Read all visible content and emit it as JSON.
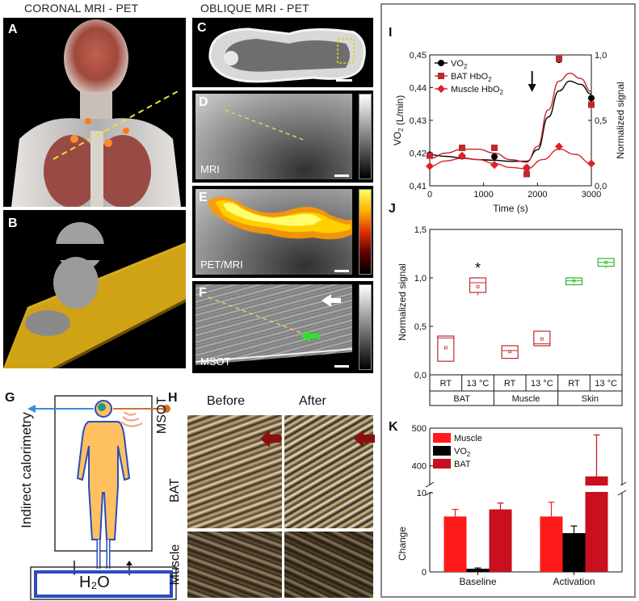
{
  "headers": {
    "coronal": "CORONAL MRI - PET",
    "oblique": "OBLIQUE MRI - PET"
  },
  "panels": {
    "A": "A",
    "B": "B",
    "C": "C",
    "D": "D",
    "E": "E",
    "F": "F",
    "G": "G",
    "H": "H",
    "I": "I",
    "J": "J",
    "K": "K"
  },
  "tags": {
    "mri": "MRI",
    "petmri": "PET/MRI",
    "msot": "MSOT"
  },
  "diagram_g": {
    "side_label": "Indirect calorimetry",
    "h2o": "H₂O"
  },
  "panel_h": {
    "before": "Before",
    "after": "After",
    "msot": "MSOT",
    "bat": "BAT",
    "muscle": "Muscle"
  },
  "chart_data": [
    {
      "id": "I",
      "type": "line",
      "xlabel": "Time (s)",
      "ylabel": "VO₂ (L/min)",
      "y2label": "Normalized signal",
      "xlim": [
        0,
        3000
      ],
      "ylim": [
        0.41,
        0.45
      ],
      "y2lim": [
        0.0,
        1.0
      ],
      "xticks": [
        "0",
        "1000",
        "2000",
        "3000"
      ],
      "yticks": [
        "0,41",
        "0,42",
        "0,43",
        "0,44",
        "0,45"
      ],
      "y2ticks": [
        "0,0",
        "0,5",
        "1,0"
      ],
      "legend_placement": "top-left",
      "colors": {
        "vo2": "#000000",
        "bat": "#c0282d",
        "muscle": "#e0202a"
      },
      "series": [
        {
          "name": "VO₂",
          "axis": "left",
          "marker": "circle",
          "x": [
            0,
            600,
            1200,
            1800,
            2400,
            3000
          ],
          "y": [
            0.4195,
            0.419,
            0.4189,
            0.4155,
            0.4485,
            0.4368
          ],
          "fit_x": [
            0,
            300,
            600,
            900,
            1200,
            1500,
            1800,
            2000,
            2200,
            2400,
            2600,
            2800,
            3000
          ],
          "fit_y": [
            0.4195,
            0.419,
            0.4185,
            0.418,
            0.4178,
            0.4175,
            0.4175,
            0.421,
            0.431,
            0.439,
            0.442,
            0.441,
            0.438
          ]
        },
        {
          "name": "BAT HbO₂",
          "axis": "right",
          "marker": "square",
          "x": [
            0,
            600,
            1200,
            1800,
            2400,
            3000
          ],
          "y": [
            0.23,
            0.29,
            0.29,
            0.09,
            0.97,
            0.62
          ],
          "fit_x": [
            0,
            300,
            600,
            900,
            1200,
            1500,
            1800,
            2000,
            2200,
            2400,
            2600,
            2800,
            3000
          ],
          "fit_y": [
            0.21,
            0.25,
            0.28,
            0.28,
            0.25,
            0.2,
            0.18,
            0.3,
            0.58,
            0.8,
            0.86,
            0.82,
            0.72
          ]
        },
        {
          "name": "Muscle HbO₂",
          "axis": "right",
          "marker": "diamond",
          "x": [
            0,
            600,
            1200,
            1800,
            2400,
            3000
          ],
          "y": [
            0.15,
            0.23,
            0.16,
            0.14,
            0.3,
            0.17
          ],
          "fit_x": [
            0,
            300,
            600,
            900,
            1200,
            1500,
            1800,
            2100,
            2400,
            2700,
            3000
          ],
          "fit_y": [
            0.15,
            0.19,
            0.21,
            0.2,
            0.17,
            0.14,
            0.13,
            0.2,
            0.28,
            0.24,
            0.17
          ]
        }
      ],
      "annotations": [
        {
          "type": "arrow-down",
          "x": 1900
        }
      ]
    },
    {
      "id": "J",
      "type": "box",
      "ylabel": "Normalized signal",
      "ylim": [
        0.0,
        1.5
      ],
      "yticks": [
        "0,0",
        "0,5",
        "1,0",
        "1,5"
      ],
      "categories": [
        "RT",
        "13 °C",
        "RT",
        "13 °C",
        "RT",
        "13 °C"
      ],
      "groups": [
        "BAT",
        "Muscle",
        "Skin"
      ],
      "colors": {
        "BAT": "#c0282d",
        "Muscle": "#c0282d",
        "Skin": "#2db52d"
      },
      "boxes": [
        {
          "group": "BAT",
          "condition": "RT",
          "min": 0.14,
          "q1": 0.14,
          "median": 0.38,
          "q3": 0.4,
          "max": 0.4,
          "mean": 0.28
        },
        {
          "group": "BAT",
          "condition": "13 °C",
          "min": 0.82,
          "q1": 0.85,
          "median": 0.95,
          "q3": 1.0,
          "max": 1.0,
          "mean": 0.91
        },
        {
          "group": "Muscle",
          "condition": "RT",
          "min": 0.17,
          "q1": 0.17,
          "median": 0.25,
          "q3": 0.3,
          "max": 0.3,
          "mean": 0.24
        },
        {
          "group": "Muscle",
          "condition": "13 °C",
          "min": 0.3,
          "q1": 0.3,
          "median": 0.32,
          "q3": 0.45,
          "max": 0.45,
          "mean": 0.37
        },
        {
          "group": "Skin",
          "condition": "RT",
          "min": 0.92,
          "q1": 0.93,
          "median": 0.97,
          "q3": 1.0,
          "max": 1.0,
          "mean": 0.97
        },
        {
          "group": "Skin",
          "condition": "13 °C",
          "min": 1.1,
          "q1": 1.12,
          "median": 1.16,
          "q3": 1.2,
          "max": 1.2,
          "mean": 1.16
        }
      ],
      "annotations": [
        {
          "text": "*",
          "category_index": 1,
          "y": 1.1
        }
      ]
    },
    {
      "id": "K",
      "type": "bar",
      "ylabel": "Change",
      "categories": [
        "Baseline",
        "Activation"
      ],
      "broken_axis": {
        "lower": [
          0,
          10
        ],
        "upper": [
          350,
          500
        ]
      },
      "yticks_lower": [
        "0",
        "10"
      ],
      "yticks_upper": [
        "400",
        "500"
      ],
      "legend_placement": "top-left",
      "series": [
        {
          "name": "Muscle",
          "color": "#ff1a1a",
          "values": [
            7.0,
            7.0
          ],
          "errors": [
            0.9,
            1.8
          ]
        },
        {
          "name": "VO₂",
          "color": "#000000",
          "values": [
            0.4,
            4.9
          ],
          "errors": [
            0.1,
            0.9
          ]
        },
        {
          "name": "BAT",
          "color": "#c8101e",
          "values": [
            7.9,
            372
          ],
          "errors": [
            0.8,
            110
          ]
        }
      ]
    }
  ]
}
